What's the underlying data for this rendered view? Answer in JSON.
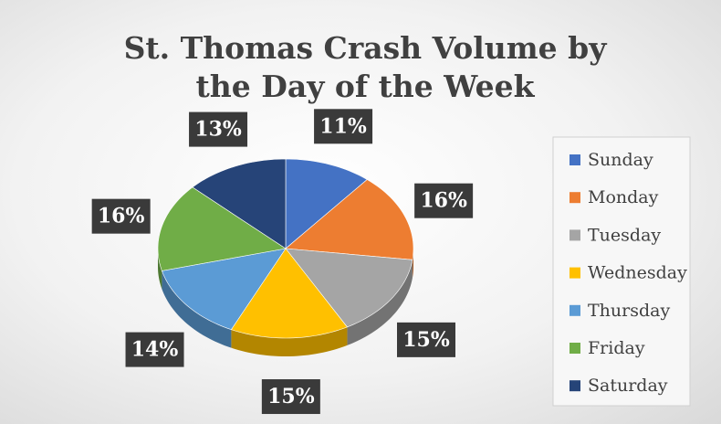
{
  "chart_data": {
    "type": "pie",
    "title": "St. Thomas Crash Volume by the Day of the Week",
    "categories": [
      "Sunday",
      "Monday",
      "Tuesday",
      "Wednesday",
      "Thursday",
      "Friday",
      "Saturday"
    ],
    "values": [
      11,
      16,
      15,
      15,
      14,
      16,
      13
    ],
    "value_labels": [
      "11%",
      "16%",
      "15%",
      "15%",
      "14%",
      "16%",
      "13%"
    ],
    "colors": [
      "#4472c4",
      "#ed7d31",
      "#a5a5a5",
      "#ffc000",
      "#5b9bd5",
      "#70ad47",
      "#264478"
    ],
    "legend": "right"
  }
}
